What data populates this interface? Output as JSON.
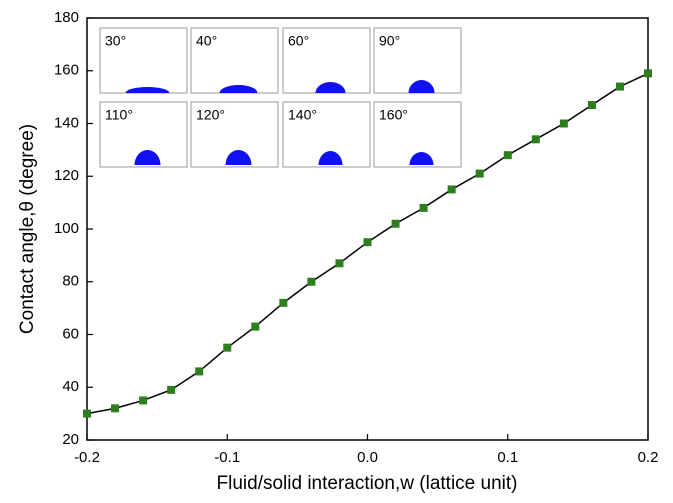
{
  "chart_data": {
    "type": "line",
    "xlabel": "Fluid/solid interaction,w (lattice unit)",
    "ylabel": "Contact angle,θ (degree)",
    "x": [
      -0.2,
      -0.18,
      -0.16,
      -0.14,
      -0.12,
      -0.1,
      -0.08,
      -0.06,
      -0.04,
      -0.02,
      0,
      0.02,
      0.04,
      0.06,
      0.08,
      0.1,
      0.12,
      0.14,
      0.16,
      0.18,
      0.2
    ],
    "series": [
      {
        "color": "#2e7d1e",
        "values": [
          30,
          32,
          35,
          39,
          46,
          55,
          63,
          72,
          80,
          87,
          95,
          102,
          108,
          115,
          121,
          128,
          134,
          140,
          147,
          154,
          159
        ]
      }
    ],
    "xlim": [
      -0.2,
      0.2
    ],
    "xticks": [
      -0.2,
      -0.1,
      {
        "value": 0,
        "label": "0.0"
      },
      0.1,
      0.2
    ],
    "ylim": [
      20,
      180
    ],
    "yticks": [
      20,
      40,
      60,
      80,
      100,
      120,
      140,
      160,
      180
    ],
    "insets": [
      "30°",
      "40°",
      "60°",
      "90°",
      "110°",
      "120°",
      "140°",
      "160°"
    ]
  }
}
